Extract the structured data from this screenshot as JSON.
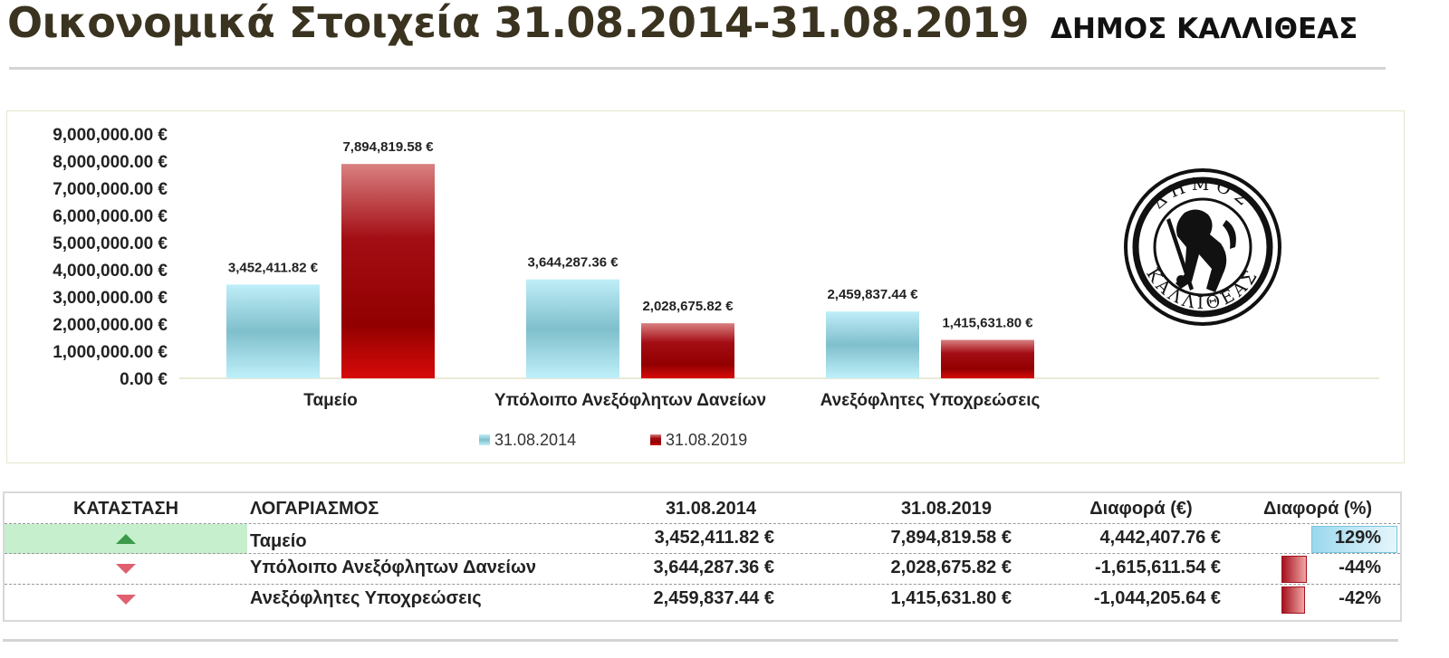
{
  "header": {
    "title": "Οικονομικά Στοιχεία 31.08.2014-31.08.2019",
    "municipality": "ΔΗΜΟΣ ΚΑΛΛΙΘΕΑΣ"
  },
  "logo": {
    "text_top": "ΔΗΜΟΣ",
    "text_bottom": "ΚΑΛΛΙΘΕΑΣ"
  },
  "chart_data": {
    "type": "bar",
    "categories": [
      "Ταμείο",
      "Υπόλοιπο Ανεξόφλητων Δανείων",
      "Ανεξόφλητες Υποχρεώσεις"
    ],
    "series": [
      {
        "name": "31.08.2014",
        "values": [
          3452411.82,
          3644287.36,
          2459837.44
        ],
        "labels": [
          "3,452,411.82 €",
          "3,644,287.36 €",
          "2,459,837.44 €"
        ],
        "color": "#7fc5d6"
      },
      {
        "name": "31.08.2019",
        "values": [
          7894819.58,
          2028675.82,
          1415631.8
        ],
        "labels": [
          "7,894,819.58 €",
          "2,028,675.82 €",
          "1,415,631.80 €"
        ],
        "color": "#a00d0d"
      }
    ],
    "ylim": [
      0,
      9000000
    ],
    "yticks": [
      0,
      1000000,
      2000000,
      3000000,
      4000000,
      5000000,
      6000000,
      7000000,
      8000000,
      9000000
    ],
    "ytick_labels": [
      "0.00 €",
      "1,000,000.00 €",
      "2,000,000.00 €",
      "3,000,000.00 €",
      "4,000,000.00 €",
      "5,000,000.00 €",
      "6,000,000.00 €",
      "7,000,000.00 €",
      "8,000,000.00 €",
      "9,000,000.00 €"
    ],
    "legend_position": "bottom",
    "grid": false
  },
  "table": {
    "headers": {
      "status": "ΚΑΤΑΣΤΑΣΗ",
      "account": "ΛΟΓΑΡΙΑΣΜΟΣ",
      "date1": "31.08.2014",
      "date2": "31.08.2019",
      "diff_eur": "Διαφορά (€)",
      "diff_pct": "Διαφορά (%)"
    },
    "rows": [
      {
        "status": "up",
        "account": "Ταμείο",
        "v2014": "3,452,411.82 €",
        "v2019": "7,894,819.58 €",
        "diff": "4,442,407.76 €",
        "pct": "129%",
        "pct_value": 129
      },
      {
        "status": "down",
        "account": "Υπόλοιπο Ανεξόφλητων Δανείων",
        "v2014": "3,644,287.36 €",
        "v2019": "2,028,675.82 €",
        "diff": "-1,615,611.54 €",
        "pct": "-44%",
        "pct_value": -44
      },
      {
        "status": "down",
        "account": "Ανεξόφλητες Υποχρεώσεις",
        "v2014": "2,459,837.44 €",
        "v2019": "1,415,631.80 €",
        "diff": "-1,044,205.64 €",
        "pct": "-42%",
        "pct_value": -42
      }
    ]
  },
  "colors": {
    "title": "#3a3320",
    "series_2014": "#7fc5d6",
    "series_2019": "#a00d0d",
    "status_up_bg": "#c6efce",
    "status_up_icon": "#3c9a4a",
    "status_down_icon": "#e06070"
  }
}
